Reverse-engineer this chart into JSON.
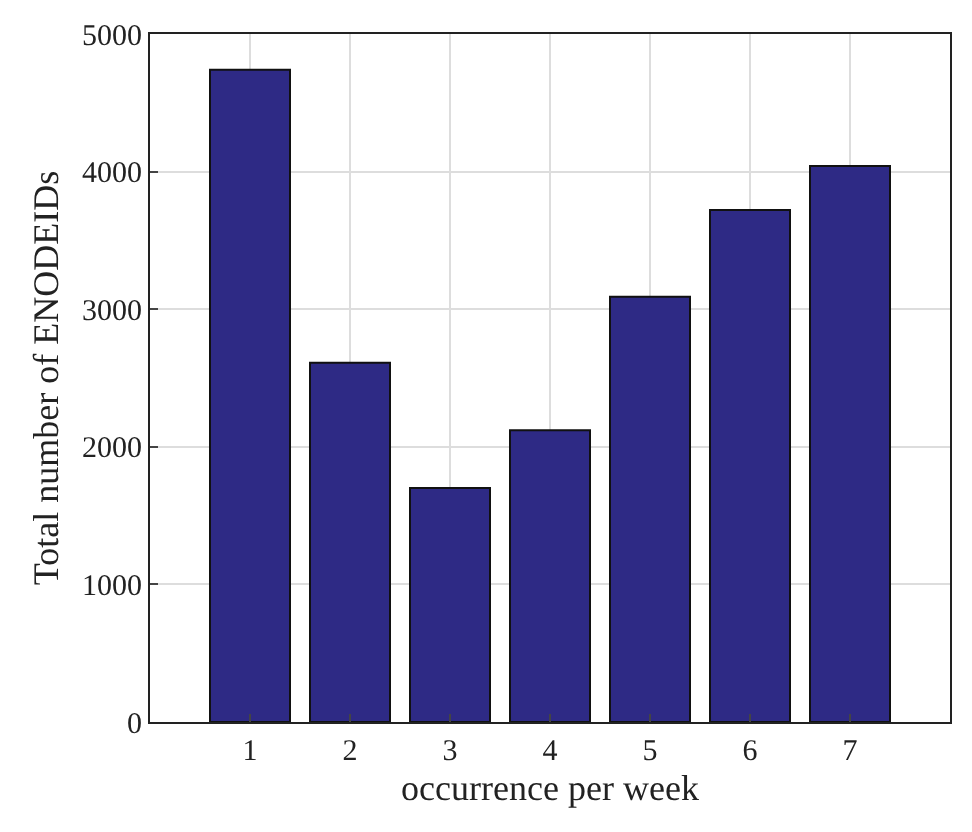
{
  "chart_data": {
    "type": "bar",
    "xlabel": "occurrence per week",
    "ylabel": "Total number of ENODEIDs",
    "x": [
      1,
      2,
      3,
      4,
      5,
      6,
      7
    ],
    "values": [
      4740,
      2610,
      1700,
      2120,
      3090,
      3720,
      4040
    ],
    "color": "#2e2a85",
    "xlim": [
      0,
      8
    ],
    "xticks": [
      1,
      2,
      3,
      4,
      5,
      6,
      7
    ],
    "ylim": [
      0,
      5000
    ],
    "yticks": [
      0,
      1000,
      2000,
      3000,
      4000,
      5000
    ],
    "grid": true
  }
}
